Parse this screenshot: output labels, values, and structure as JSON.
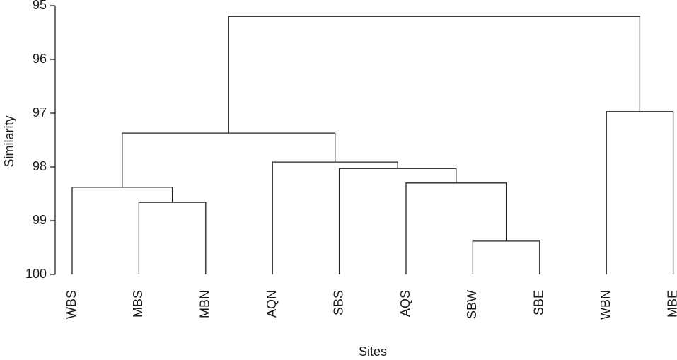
{
  "chart_data": {
    "type": "dendrogram",
    "y_label": "Similarity",
    "x_label": "Sites",
    "categories": [
      "WBS",
      "MBS",
      "MBN",
      "AQN",
      "SBS",
      "AQS",
      "SBW",
      "SBE",
      "WBN",
      "MBE"
    ],
    "merges": [
      {
        "children": [
          1,
          2
        ],
        "value": 98.66
      },
      {
        "children": [
          0,
          10
        ],
        "value": 98.38
      },
      {
        "children": [
          6,
          7
        ],
        "value": 99.38
      },
      {
        "children": [
          5,
          12
        ],
        "value": 98.3
      },
      {
        "children": [
          4,
          13
        ],
        "value": 98.03
      },
      {
        "children": [
          3,
          14
        ],
        "value": 97.91
      },
      {
        "children": [
          11,
          15
        ],
        "value": 97.37
      },
      {
        "children": [
          8,
          9
        ],
        "value": 96.97
      },
      {
        "children": [
          16,
          17
        ],
        "value": 95.2
      }
    ],
    "ylim": [
      100,
      95
    ],
    "yticks": [
      95,
      96,
      97,
      98,
      99,
      100
    ],
    "color": "#222222"
  }
}
